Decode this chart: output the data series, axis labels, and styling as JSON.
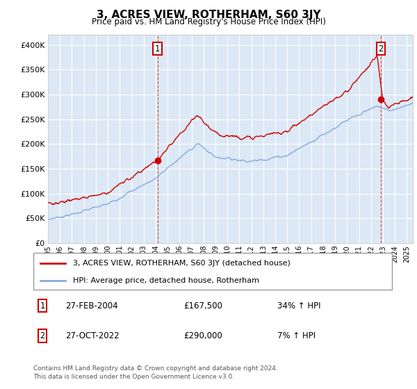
{
  "title": "3, ACRES VIEW, ROTHERHAM, S60 3JY",
  "subtitle": "Price paid vs. HM Land Registry's House Price Index (HPI)",
  "hpi_color": "#88aadd",
  "price_color": "#cc0000",
  "plot_bg": "#dce8f5",
  "ylim": [
    0,
    420000
  ],
  "yticks": [
    0,
    50000,
    100000,
    150000,
    200000,
    250000,
    300000,
    350000,
    400000
  ],
  "ytick_labels": [
    "£0",
    "£50K",
    "£100K",
    "£150K",
    "£200K",
    "£250K",
    "£300K",
    "£350K",
    "£400K"
  ],
  "xstart": 1995.0,
  "xend": 2025.5,
  "sale1_year": 2004.15,
  "sale1_price": 167500,
  "sale2_year": 2022.82,
  "sale2_price": 290000,
  "legend_property": "3, ACRES VIEW, ROTHERHAM, S60 3JY (detached house)",
  "legend_hpi": "HPI: Average price, detached house, Rotherham",
  "annotation1_date": "27-FEB-2004",
  "annotation1_price": "£167,500",
  "annotation1_hpi": "34% ↑ HPI",
  "annotation2_date": "27-OCT-2022",
  "annotation2_price": "£290,000",
  "annotation2_hpi": "7% ↑ HPI",
  "footer": "Contains HM Land Registry data © Crown copyright and database right 2024.\nThis data is licensed under the Open Government Licence v3.0."
}
